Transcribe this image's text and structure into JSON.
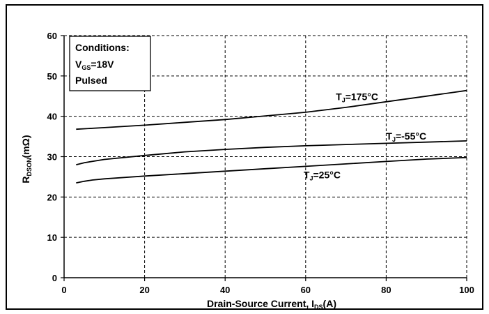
{
  "chart_data": {
    "type": "line",
    "xlabel": "Drain-Source Current, I",
    "xlabel_sub": "DS",
    "xlabel_suffix": "(A)",
    "ylabel": "R",
    "ylabel_sub": "DSON",
    "ylabel_suffix": "(mΩ)",
    "xlim": [
      0,
      100
    ],
    "ylim": [
      0,
      60
    ],
    "xticks": [
      0,
      20,
      40,
      60,
      80,
      100
    ],
    "yticks": [
      0,
      10,
      20,
      30,
      40,
      50,
      60
    ],
    "grid": true,
    "conditions": {
      "title": "Conditions:",
      "line2_pre": "V",
      "line2_sub": "GS",
      "line2_post": "=18V",
      "line3": "Pulsed"
    },
    "series": [
      {
        "name_pre": "T",
        "name_sub": "J",
        "name_post": "=175°C",
        "points": [
          [
            3,
            36.8
          ],
          [
            10,
            37.2
          ],
          [
            20,
            37.8
          ],
          [
            30,
            38.5
          ],
          [
            40,
            39.2
          ],
          [
            50,
            40.1
          ],
          [
            60,
            41.0
          ],
          [
            70,
            42.2
          ],
          [
            80,
            43.6
          ],
          [
            90,
            45.0
          ],
          [
            100,
            46.4
          ]
        ]
      },
      {
        "name_pre": "T",
        "name_sub": "J",
        "name_post": "=-55°C",
        "points": [
          [
            3,
            28.0
          ],
          [
            5,
            28.5
          ],
          [
            10,
            29.3
          ],
          [
            20,
            30.3
          ],
          [
            30,
            31.2
          ],
          [
            40,
            31.8
          ],
          [
            50,
            32.3
          ],
          [
            60,
            32.7
          ],
          [
            70,
            33.0
          ],
          [
            80,
            33.3
          ],
          [
            90,
            33.6
          ],
          [
            100,
            33.9
          ]
        ]
      },
      {
        "name_pre": "T",
        "name_sub": "J",
        "name_post": "=25°C",
        "points": [
          [
            3,
            23.5
          ],
          [
            5,
            23.9
          ],
          [
            7,
            24.2
          ],
          [
            10,
            24.5
          ],
          [
            20,
            25.2
          ],
          [
            30,
            25.8
          ],
          [
            40,
            26.4
          ],
          [
            50,
            27.0
          ],
          [
            60,
            27.6
          ],
          [
            70,
            28.2
          ],
          [
            80,
            28.8
          ],
          [
            90,
            29.4
          ],
          [
            100,
            29.8
          ]
        ]
      }
    ]
  }
}
